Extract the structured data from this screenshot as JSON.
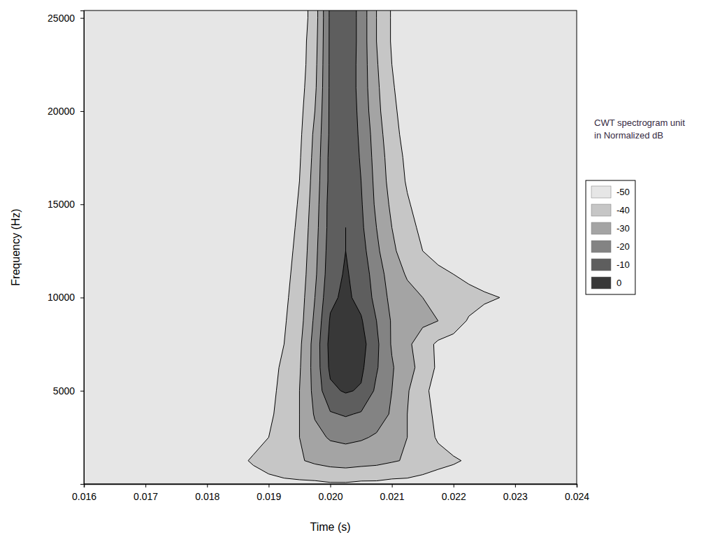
{
  "chart_data": {
    "type": "contour",
    "x_label": "Time (s)",
    "y_label": "Frequency (Hz)",
    "xlim": [
      0.016,
      0.024
    ],
    "xticks": [
      0.016,
      0.017,
      0.018,
      0.019,
      {
        "value": 0.02,
        "label": "0.020"
      },
      0.021,
      0.022,
      0.023,
      0.024
    ],
    "ylim": [
      0,
      25400
    ],
    "yticks": [
      5000,
      10000,
      15000,
      20000,
      25000
    ],
    "x": [
      0.016,
      0.01625,
      0.0165,
      0.01675,
      0.017,
      0.01725,
      0.0175,
      0.01775,
      0.018,
      0.01825,
      0.0185,
      0.01875,
      0.019,
      0.01925,
      0.0195,
      0.01975,
      0.02,
      0.02025,
      0.0205,
      0.02075,
      0.021,
      0.02125,
      0.0215,
      0.02175,
      0.022,
      0.02225,
      0.0225,
      0.02275,
      0.023,
      0.02325,
      0.0235,
      0.02375,
      0.024
    ],
    "y": [
      0,
      1250,
      2500,
      3750,
      5000,
      6250,
      7500,
      8750,
      10000,
      11250,
      12500,
      13750,
      15000,
      16250,
      17500,
      18750,
      20000,
      21250,
      22500,
      23750,
      25000,
      26250
    ],
    "z": [
      [
        -60,
        -60,
        -60,
        -60,
        -60,
        -60,
        -60,
        -58,
        -57,
        -56,
        -55,
        -54,
        -53,
        -52,
        -52,
        -52,
        -51,
        -51,
        -52,
        -52,
        -53,
        -53,
        -54,
        -55,
        -55,
        -56,
        -57,
        -58,
        -59,
        -60,
        -60,
        -60,
        -60
      ],
      [
        -60,
        -60,
        -60,
        -60,
        -60,
        -60,
        -60,
        -58,
        -56,
        -54,
        -52,
        -49,
        -46,
        -44,
        -41,
        -38,
        -36,
        -35,
        -36,
        -37,
        -39,
        -41,
        -44,
        -47,
        -49,
        -51,
        -53,
        -55,
        -57,
        -58,
        -60,
        -60,
        -60
      ],
      [
        -60,
        -60,
        -60,
        -60,
        -60,
        -60,
        -60,
        -60,
        -58,
        -57,
        -55,
        -53,
        -50,
        -45,
        -40,
        -33,
        -29,
        -28,
        -29,
        -31,
        -35,
        -40,
        -46,
        -51,
        -54,
        -56,
        -58,
        -59,
        -60,
        -60,
        -60,
        -60,
        -60
      ],
      [
        -60,
        -60,
        -60,
        -60,
        -60,
        -60,
        -60,
        -60,
        -60,
        -60,
        -57,
        -55,
        -52,
        -46,
        -40,
        -29,
        -21,
        -19,
        -21,
        -26,
        -31,
        -40,
        -47,
        -52,
        -55,
        -57,
        -59,
        -60,
        -60,
        -60,
        -60,
        -60,
        -60
      ],
      [
        -60,
        -60,
        -60,
        -60,
        -60,
        -60,
        -60,
        -60,
        -60,
        -60,
        -58,
        -56,
        -53,
        -47,
        -40,
        -27,
        -12,
        -9,
        -11,
        -22,
        -30,
        -39,
        -48,
        -53,
        -56,
        -58,
        -60,
        -60,
        -60,
        -60,
        -60,
        -60,
        -60
      ],
      [
        -60,
        -60,
        -60,
        -60,
        -60,
        -60,
        -60,
        -60,
        -60,
        -60,
        -60,
        -57,
        -54,
        -48,
        -41,
        -26,
        -8,
        -5,
        -8,
        -19,
        -29,
        -37,
        -43,
        -52,
        -55,
        -57,
        -59,
        -60,
        -60,
        -60,
        -60,
        -60,
        -60
      ],
      [
        -60,
        -60,
        -60,
        -60,
        -60,
        -60,
        -60,
        -60,
        -60,
        -60,
        -60,
        -58,
        -55,
        -50,
        -42,
        -26,
        -7,
        -2,
        -6,
        -18,
        -31,
        -38,
        -45,
        -52,
        -54,
        -56,
        -58,
        -60,
        -60,
        -60,
        -60,
        -60,
        -60
      ],
      [
        -60,
        -60,
        -60,
        -60,
        -60,
        -60,
        -60,
        -60,
        -60,
        -60,
        -60,
        -60,
        -56,
        -51,
        -44,
        -28,
        -9,
        -4,
        -9,
        -20,
        -31,
        -36,
        -38,
        -40,
        -45,
        -51,
        -55,
        -58,
        -60,
        -60,
        -60,
        -60,
        -60
      ],
      [
        -60,
        -60,
        -60,
        -60,
        -60,
        -60,
        -60,
        -60,
        -60,
        -60,
        -60,
        -60,
        -57,
        -52,
        -45,
        -30,
        -12,
        -8,
        -13,
        -23,
        -33,
        -37,
        -40,
        -42,
        -44,
        -46,
        -48,
        -50,
        -54,
        -58,
        -60,
        -60,
        -60
      ],
      [
        -60,
        -60,
        -60,
        -60,
        -60,
        -60,
        -60,
        -60,
        -60,
        -60,
        -60,
        -60,
        -58,
        -53,
        -46,
        -32,
        -14,
        -9,
        -14,
        -25,
        -35,
        -41,
        -45,
        -48,
        -50,
        -53,
        -56,
        -58,
        -60,
        -60,
        -60,
        -60,
        -60
      ],
      [
        -60,
        -60,
        -60,
        -60,
        -60,
        -60,
        -60,
        -60,
        -60,
        -60,
        -60,
        -60,
        -60,
        -54,
        -47,
        -33,
        -15,
        -10,
        -16,
        -28,
        -38,
        -45,
        -50,
        -53,
        -56,
        -58,
        -60,
        -60,
        -60,
        -60,
        -60,
        -60,
        -60
      ],
      [
        -60,
        -60,
        -60,
        -60,
        -60,
        -60,
        -60,
        -60,
        -60,
        -60,
        -60,
        -60,
        -60,
        -55,
        -48,
        -34,
        -16,
        -10,
        -18,
        -30,
        -40,
        -47,
        -52,
        -56,
        -58,
        -60,
        -60,
        -60,
        -60,
        -60,
        -60,
        -60,
        -60
      ],
      [
        -60,
        -60,
        -60,
        -60,
        -60,
        -60,
        -60,
        -60,
        -60,
        -60,
        -60,
        -60,
        -60,
        -56,
        -49,
        -35,
        -16,
        -11,
        -19,
        -32,
        -42,
        -49,
        -54,
        -57,
        -60,
        -60,
        -60,
        -60,
        -60,
        -60,
        -60,
        -60,
        -60
      ],
      [
        -60,
        -60,
        -60,
        -60,
        -60,
        -60,
        -60,
        -60,
        -60,
        -60,
        -60,
        -60,
        -60,
        -57,
        -50,
        -36,
        -17,
        -11,
        -20,
        -33,
        -44,
        -51,
        -55,
        -58,
        -60,
        -60,
        -60,
        -60,
        -60,
        -60,
        -60,
        -60,
        -60
      ],
      [
        -60,
        -60,
        -60,
        -60,
        -60,
        -60,
        -60,
        -60,
        -60,
        -60,
        -60,
        -60,
        -60,
        -57,
        -51,
        -37,
        -17,
        -12,
        -21,
        -34,
        -45,
        -52,
        -56,
        -58,
        -60,
        -60,
        -60,
        -60,
        -60,
        -60,
        -60,
        -60,
        -60
      ],
      [
        -60,
        -60,
        -60,
        -60,
        -60,
        -60,
        -60,
        -60,
        -60,
        -60,
        -60,
        -60,
        -60,
        -58,
        -52,
        -38,
        -18,
        -12,
        -22,
        -35,
        -47,
        -53,
        -57,
        -60,
        -60,
        -60,
        -60,
        -60,
        -60,
        -60,
        -60,
        -60,
        -60
      ],
      [
        -60,
        -60,
        -60,
        -60,
        -60,
        -60,
        -60,
        -60,
        -60,
        -60,
        -60,
        -60,
        -60,
        -60,
        -53,
        -40,
        -18,
        -12,
        -23,
        -37,
        -48,
        -54,
        -58,
        -60,
        -60,
        -60,
        -60,
        -60,
        -60,
        -60,
        -60,
        -60,
        -60
      ],
      [
        -60,
        -60,
        -60,
        -60,
        -60,
        -60,
        -60,
        -60,
        -60,
        -60,
        -60,
        -60,
        -60,
        -60,
        -54,
        -42,
        -18,
        -12,
        -24,
        -38,
        -49,
        -55,
        -58,
        -60,
        -60,
        -60,
        -60,
        -60,
        -60,
        -60,
        -60,
        -60,
        -60
      ],
      [
        -60,
        -60,
        -60,
        -60,
        -60,
        -60,
        -60,
        -60,
        -60,
        -60,
        -60,
        -60,
        -60,
        -60,
        -55,
        -43,
        -18,
        -12,
        -24,
        -39,
        -50,
        -56,
        -60,
        -60,
        -60,
        -60,
        -60,
        -60,
        -60,
        -60,
        -60,
        -60,
        -60
      ],
      [
        -60,
        -60,
        -60,
        -60,
        -60,
        -60,
        -60,
        -60,
        -60,
        -60,
        -60,
        -60,
        -60,
        -60,
        -55,
        -44,
        -18,
        -11,
        -24,
        -40,
        -51,
        -56,
        -60,
        -60,
        -60,
        -60,
        -60,
        -60,
        -60,
        -60,
        -60,
        -60,
        -60
      ],
      [
        -60,
        -60,
        -60,
        -60,
        -60,
        -60,
        -60,
        -60,
        -60,
        -60,
        -60,
        -60,
        -60,
        -60,
        -56,
        -45,
        -18,
        -11,
        -24,
        -40,
        -51,
        -57,
        -60,
        -60,
        -60,
        -60,
        -60,
        -60,
        -60,
        -60,
        -60,
        -60,
        -60
      ],
      [
        -60,
        -60,
        -60,
        -60,
        -60,
        -60,
        -60,
        -60,
        -60,
        -60,
        -60,
        -60,
        -60,
        -60,
        -56,
        -45,
        -18,
        -11,
        -24,
        -40,
        -51,
        -57,
        -60,
        -60,
        -60,
        -60,
        -60,
        -60,
        -60,
        -60,
        -60,
        -60,
        -60
      ]
    ],
    "colorbar": {
      "title": "CWT spectrogram unit in Normalized dB",
      "ticks": [
        -50,
        -40,
        -30,
        -20,
        -10,
        0
      ],
      "colors": [
        "#e6e6e6",
        "#c6c6c6",
        "#a4a4a4",
        "#838383",
        "#5e5e5e",
        "#383838"
      ]
    }
  }
}
